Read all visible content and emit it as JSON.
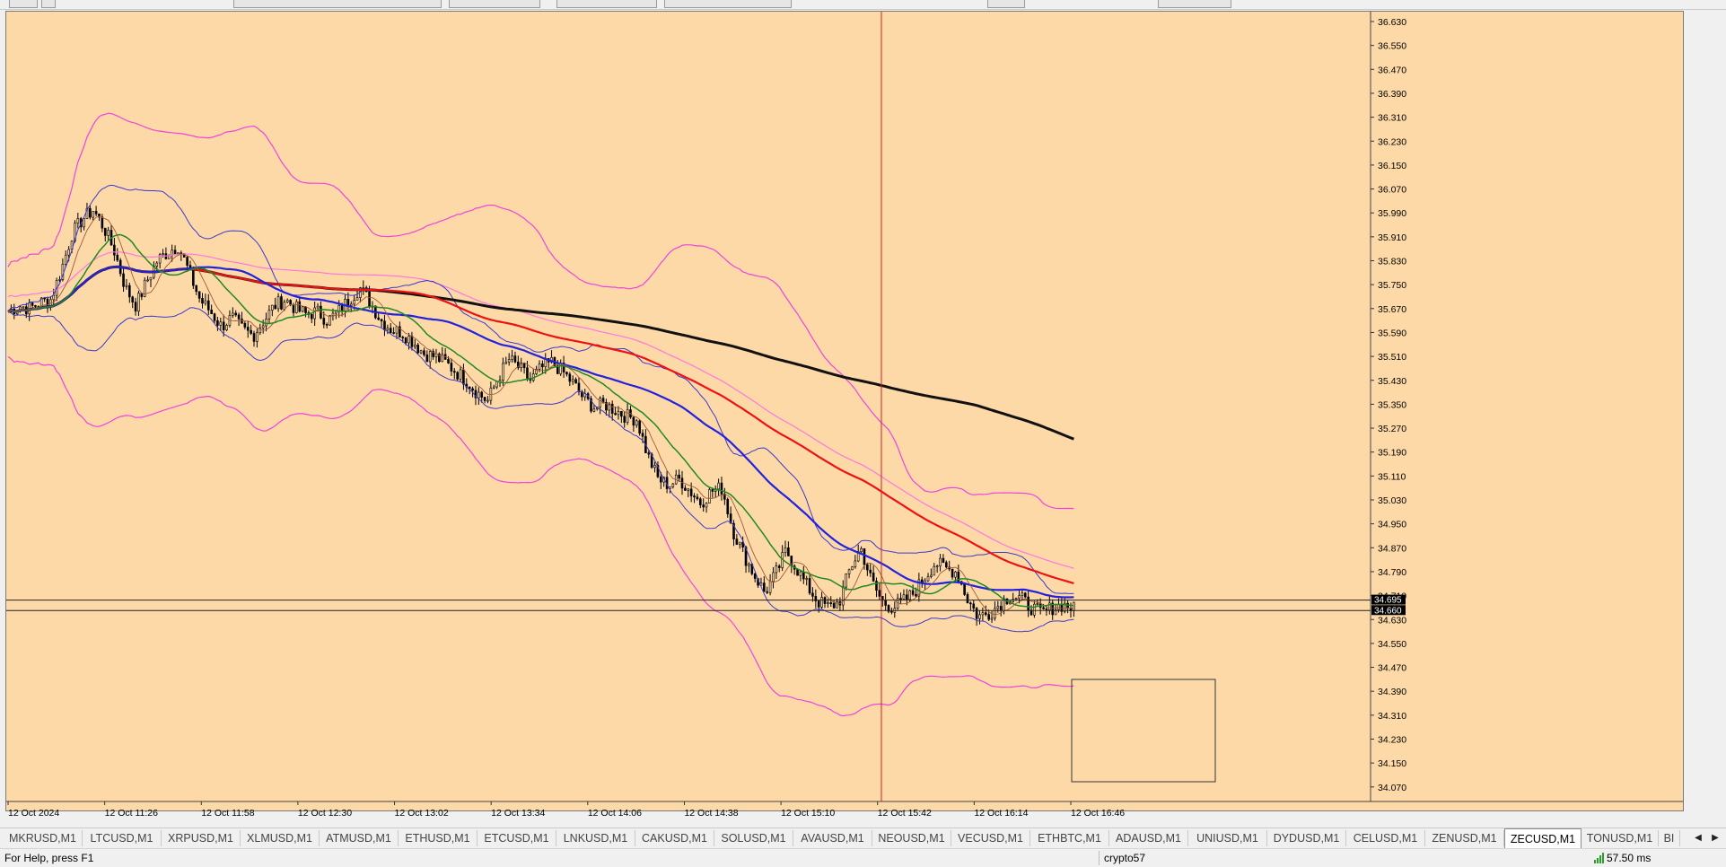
{
  "statusbar": {
    "help_text": "For Help, press F1",
    "profile": "crypto57",
    "ping": "57.50 ms"
  },
  "tabs": {
    "items": [
      "MKRUSD,M1",
      "LTCUSD,M1",
      "XRPUSD,M1",
      "XLMUSD,M1",
      "ATMUSD,M1",
      "ETHUSD,M1",
      "ETCUSD,M1",
      "LNKUSD,M1",
      "CAKUSD,M1",
      "SOLUSD,M1",
      "AVAUSD,M1",
      "NEOUSD,M1",
      "VECUSD,M1",
      "ETHBTC,M1",
      "ADAUSD,M1",
      "UNIUSD,M1",
      "DYDUSD,M1",
      "CELUSD,M1",
      "ZENUSD,M1",
      "ZECUSD,M1",
      "TONUSD,M1",
      "BI"
    ],
    "active": "ZECUSD,M1"
  },
  "chart_data": {
    "type": "candlestick",
    "symbol": "ZECUSD",
    "timeframe": "M1",
    "price_axis_labels": [
      "36.630",
      "36.550",
      "36.470",
      "36.390",
      "36.310",
      "36.230",
      "36.150",
      "36.070",
      "35.990",
      "35.910",
      "35.830",
      "35.750",
      "35.670",
      "35.590",
      "35.510",
      "35.430",
      "35.350",
      "35.270",
      "35.190",
      "35.110",
      "35.030",
      "34.950",
      "34.870",
      "34.790",
      "34.710",
      "34.630",
      "34.550",
      "34.470",
      "34.390",
      "34.310",
      "34.230",
      "34.150",
      "34.070"
    ],
    "ylim": [
      34.01,
      36.66
    ],
    "time_axis_labels": [
      "12 Oct 2024",
      "12 Oct 11:26",
      "12 Oct 11:58",
      "12 Oct 12:30",
      "12 Oct 13:02",
      "12 Oct 13:34",
      "12 Oct 14:06",
      "12 Oct 14:38",
      "12 Oct 15:10",
      "12 Oct 15:42",
      "12 Oct 16:14",
      "12 Oct 16:46"
    ],
    "time_range": [
      "12 Oct 10:56",
      "12 Oct 16:56"
    ],
    "current_price_labels": [
      "34.695",
      "34.660"
    ],
    "horizontal_lines": [
      34.695,
      34.66
    ],
    "vertical_line_time": "12 Oct 15:47",
    "closes": [
      35.66,
      35.68,
      35.67,
      35.69,
      35.7,
      35.8,
      35.92,
      35.97,
      36.0,
      35.94,
      35.86,
      35.74,
      35.68,
      35.76,
      35.83,
      35.86,
      35.88,
      35.79,
      35.7,
      35.66,
      35.61,
      35.64,
      35.6,
      35.58,
      35.63,
      35.68,
      35.7,
      35.67,
      35.65,
      35.66,
      35.63,
      35.66,
      35.7,
      35.74,
      35.69,
      35.63,
      35.6,
      35.59,
      35.56,
      35.52,
      35.51,
      35.49,
      35.46,
      35.43,
      35.39,
      35.36,
      35.44,
      35.5,
      35.47,
      35.43,
      35.47,
      35.49,
      35.46,
      35.42,
      35.37,
      35.34,
      35.35,
      35.33,
      35.31,
      35.3,
      35.18,
      35.1,
      35.08,
      35.1,
      35.06,
      35.02,
      35.06,
      35.07,
      34.93,
      34.85,
      34.78,
      34.72,
      34.78,
      34.86,
      34.8,
      34.74,
      34.69,
      34.67,
      34.69,
      34.8,
      34.87,
      34.76,
      34.69,
      34.67,
      34.69,
      34.72,
      34.77,
      34.82,
      34.8,
      34.79,
      34.7,
      34.64,
      34.65,
      34.68,
      34.71,
      34.7,
      34.67,
      34.65,
      34.67,
      34.68,
      34.665
    ],
    "indicators": [
      {
        "name": "MA fast",
        "color": "#a05a3a",
        "width": 0.9
      },
      {
        "name": "MA medium",
        "color": "#1f8a1f",
        "width": 1.5
      },
      {
        "name": "MA slow",
        "color": "#2222dd",
        "width": 2.2
      },
      {
        "name": "MA long",
        "color": "#ee1111",
        "width": 2.2
      },
      {
        "name": "MA trend",
        "color": "#111111",
        "width": 3
      },
      {
        "name": "Bollinger inner",
        "color": "#3a3acc",
        "width": 1
      },
      {
        "name": "Bollinger outer",
        "color": "#ee44dd",
        "width": 1.2
      },
      {
        "name": "Envelope",
        "color": "#ff77dd",
        "width": 1.2
      }
    ],
    "background": "#fdd9a8"
  }
}
